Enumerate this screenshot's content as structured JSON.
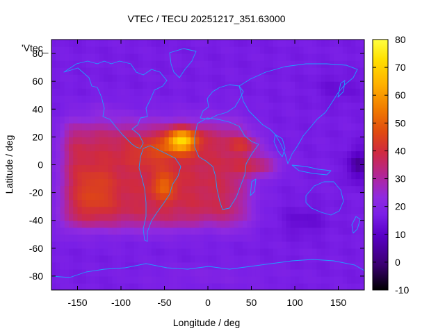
{
  "chart_data": {
    "type": "heatmap",
    "title": "VTEC / TECU 20251217_351.63000",
    "xlabel": "Longitude / deg",
    "ylabel": "Latitude / deg",
    "series_label": "'Vtec_",
    "xlim": [
      -180,
      180
    ],
    "ylim": [
      -90,
      90
    ],
    "x_ticks": [
      -150,
      -100,
      -50,
      0,
      50,
      100,
      150
    ],
    "y_ticks": [
      -80,
      -60,
      -40,
      -20,
      0,
      20,
      40,
      60,
      80
    ],
    "colorbar": {
      "range": [
        -10,
        80
      ],
      "ticks": [
        -10,
        0,
        10,
        20,
        30,
        40,
        50,
        60,
        70,
        80
      ],
      "palette": [
        "#000000",
        "#3a0070",
        "#5a00c8",
        "#7a1fe6",
        "#8f2be0",
        "#b0269d",
        "#d02a40",
        "#e04a10",
        "#f07a00",
        "#ffb000",
        "#ffe000",
        "#ffff40"
      ]
    },
    "background_tecu": 14,
    "features": [
      {
        "name": "equatorial-anomaly-americas-atlantic",
        "lon": [
          -170,
          60
        ],
        "lat": [
          -50,
          35
        ],
        "peak_tecu": 75,
        "peak_lon": -25,
        "peak_lat": 18
      },
      {
        "name": "north-crest",
        "lon": -30,
        "lat": 18,
        "tecu": 75
      },
      {
        "name": "south-crest",
        "lon": -50,
        "lat": -15,
        "tecu": 55
      },
      {
        "name": "east-pacific-plateau",
        "lon": -130,
        "lat": -20,
        "tecu": 45
      },
      {
        "name": "indian-ocean-tail",
        "lon": 60,
        "lat": 0,
        "tecu": 35
      },
      {
        "name": "depletion-west-pacific",
        "lon": 172,
        "lat": 0,
        "tecu": 2
      },
      {
        "name": "depletion-south-indian",
        "lon": 110,
        "lat": -40,
        "tecu": 8
      },
      {
        "name": "depletion-north-asia",
        "lon": 150,
        "lat": 55,
        "tecu": 10
      }
    ],
    "overlay": "coastlines",
    "coastline_color": "#1f9fff"
  }
}
